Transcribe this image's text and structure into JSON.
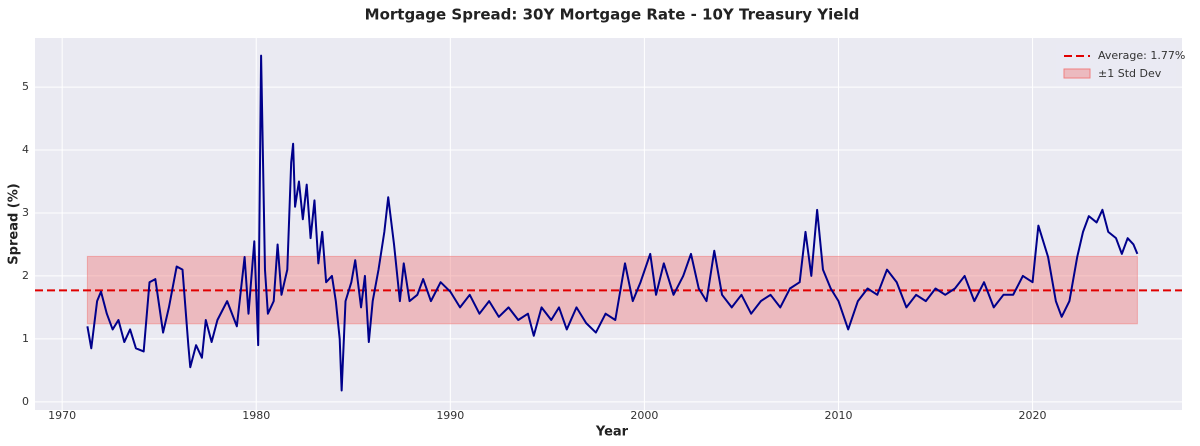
{
  "chart_data": {
    "type": "line",
    "title": "Mortgage Spread: 30Y Mortgage Rate - 10Y Treasury Yield",
    "x_label": "Year",
    "y_label": "Spread (%)",
    "x": [
      1971.3,
      1971.5,
      1971.8,
      1972.0,
      1972.3,
      1972.6,
      1972.9,
      1973.2,
      1973.5,
      1973.8,
      1974.2,
      1974.5,
      1974.8,
      1975.2,
      1975.5,
      1975.9,
      1976.2,
      1976.5,
      1976.6,
      1976.9,
      1977.2,
      1977.4,
      1977.7,
      1978.0,
      1978.5,
      1979.0,
      1979.4,
      1979.6,
      1979.9,
      1980.1,
      1980.25,
      1980.45,
      1980.6,
      1980.9,
      1981.1,
      1981.3,
      1981.6,
      1981.8,
      1981.9,
      1982.0,
      1982.2,
      1982.4,
      1982.6,
      1982.8,
      1983.0,
      1983.2,
      1983.4,
      1983.6,
      1983.9,
      1984.1,
      1984.3,
      1984.4,
      1984.6,
      1984.9,
      1985.1,
      1985.4,
      1985.6,
      1985.8,
      1986.0,
      1986.3,
      1986.6,
      1986.8,
      1987.1,
      1987.4,
      1987.6,
      1987.9,
      1988.3,
      1988.6,
      1989.0,
      1989.5,
      1990.0,
      1990.5,
      1991.0,
      1991.5,
      1992.0,
      1992.5,
      1993.0,
      1993.5,
      1994.0,
      1994.3,
      1994.7,
      1995.2,
      1995.6,
      1996.0,
      1996.5,
      1997.0,
      1997.5,
      1998.0,
      1998.5,
      1999.0,
      1999.4,
      1999.8,
      2000.3,
      2000.6,
      2001.0,
      2001.5,
      2002.0,
      2002.4,
      2002.8,
      2003.2,
      2003.6,
      2004.0,
      2004.5,
      2005.0,
      2005.5,
      2006.0,
      2006.5,
      2007.0,
      2007.5,
      2008.0,
      2008.3,
      2008.6,
      2008.9,
      2009.2,
      2009.6,
      2010.0,
      2010.5,
      2011.0,
      2011.5,
      2012.0,
      2012.5,
      2013.0,
      2013.5,
      2014.0,
      2014.5,
      2015.0,
      2015.5,
      2016.0,
      2016.5,
      2017.0,
      2017.5,
      2018.0,
      2018.5,
      2019.0,
      2019.5,
      2020.0,
      2020.3,
      2020.8,
      2021.2,
      2021.5,
      2021.9,
      2022.3,
      2022.6,
      2022.9,
      2023.3,
      2023.6,
      2023.9,
      2024.3,
      2024.6,
      2024.9,
      2025.2,
      2025.4
    ],
    "series": [
      {
        "name": "Spread",
        "color": "#00008b",
        "values": [
          1.2,
          0.85,
          1.6,
          1.75,
          1.4,
          1.15,
          1.3,
          0.95,
          1.15,
          0.85,
          0.8,
          1.9,
          1.95,
          1.1,
          1.5,
          2.15,
          2.1,
          0.9,
          0.55,
          0.9,
          0.7,
          1.3,
          0.95,
          1.3,
          1.6,
          1.2,
          2.3,
          1.4,
          2.55,
          0.9,
          5.5,
          2.1,
          1.4,
          1.6,
          2.5,
          1.7,
          2.1,
          3.8,
          4.1,
          3.1,
          3.5,
          2.9,
          3.45,
          2.6,
          3.2,
          2.2,
          2.7,
          1.9,
          2.0,
          1.6,
          1.0,
          0.18,
          1.6,
          1.9,
          2.25,
          1.5,
          2.0,
          0.95,
          1.6,
          2.1,
          2.7,
          3.25,
          2.5,
          1.6,
          2.2,
          1.6,
          1.7,
          1.95,
          1.6,
          1.9,
          1.75,
          1.5,
          1.7,
          1.4,
          1.6,
          1.35,
          1.5,
          1.3,
          1.4,
          1.05,
          1.5,
          1.3,
          1.5,
          1.15,
          1.5,
          1.25,
          1.1,
          1.4,
          1.3,
          2.2,
          1.6,
          1.9,
          2.35,
          1.7,
          2.2,
          1.7,
          2.0,
          2.35,
          1.8,
          1.6,
          2.4,
          1.7,
          1.5,
          1.7,
          1.4,
          1.6,
          1.7,
          1.5,
          1.8,
          1.9,
          2.7,
          2.0,
          3.05,
          2.1,
          1.8,
          1.6,
          1.15,
          1.6,
          1.8,
          1.7,
          2.1,
          1.9,
          1.5,
          1.7,
          1.6,
          1.8,
          1.7,
          1.8,
          2.0,
          1.6,
          1.9,
          1.5,
          1.7,
          1.7,
          2.0,
          1.9,
          2.8,
          2.3,
          1.6,
          1.35,
          1.6,
          2.3,
          2.7,
          2.95,
          2.85,
          3.05,
          2.7,
          2.6,
          2.35,
          2.6,
          2.5,
          2.35
        ]
      }
    ],
    "average": {
      "value": 1.77,
      "label": "Average: 1.77%",
      "color": "#e00000"
    },
    "std_band": {
      "lower": 1.24,
      "upper": 2.31,
      "label": "±1 Std Dev",
      "color": "#f08080"
    },
    "xlim": [
      1968.6,
      2027.7
    ],
    "xticks": [
      1970,
      1980,
      1990,
      2000,
      2010,
      2020
    ],
    "ylim": [
      -0.13,
      5.78
    ],
    "yticks": [
      0,
      1,
      2,
      3,
      4,
      5
    ],
    "grid": true,
    "legend": "upper right"
  }
}
